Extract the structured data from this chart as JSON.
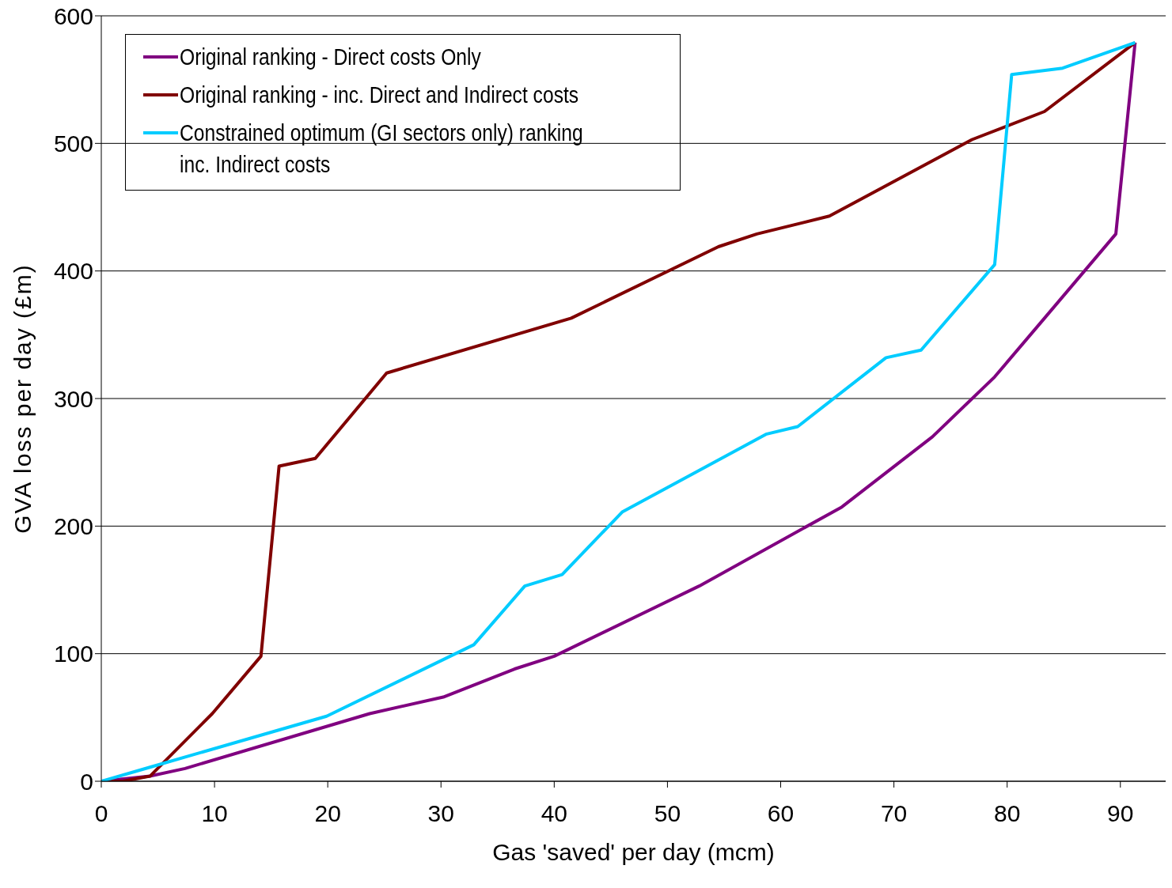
{
  "chart_data": {
    "type": "line",
    "xlabel": "Gas 'saved' per day (mcm)",
    "ylabel": "GVA loss per day (£m)",
    "xlim": [
      0,
      94
    ],
    "xticks": [
      0,
      10,
      20,
      30,
      40,
      50,
      60,
      70,
      80,
      90
    ],
    "ylim": [
      0,
      600
    ],
    "yticks": [
      0,
      100,
      200,
      300,
      400,
      500,
      600
    ],
    "grid": "y",
    "legend": "top left",
    "marker": "none",
    "line_style": "solid",
    "series": [
      {
        "name": "Original ranking - Direct costs Only",
        "color": "#800080",
        "x": [
          0,
          4.3,
          7.4,
          23.7,
          30.2,
          36.5,
          40,
          52.8,
          65.4,
          73.4,
          78.9,
          83.3,
          89.6,
          91.3
        ],
        "values": [
          0,
          4,
          10,
          53,
          66,
          88,
          98,
          153,
          215,
          270,
          317,
          363,
          429,
          579
        ]
      },
      {
        "name": "Original ranking - inc. Direct and Indirect costs",
        "color": "#800000",
        "x": [
          0,
          1.9,
          4.3,
          9.8,
          14.1,
          15.7,
          18.9,
          25.2,
          41.5,
          54.5,
          57.9,
          64.3,
          76.9,
          83.3,
          91.3
        ],
        "values": [
          0,
          0,
          4,
          53,
          98,
          247,
          253,
          320,
          363,
          419,
          429,
          443,
          503,
          525,
          579
        ]
      },
      {
        "name": "Constrained optimum (GI sectors only) ranking inc. Indirect costs",
        "color": "#00ccff",
        "x": [
          0,
          4.3,
          19.9,
          32.9,
          37.4,
          40.7,
          46,
          58.7,
          61.5,
          69.3,
          72.4,
          78.9,
          80.4,
          84.9,
          91.3
        ],
        "values": [
          0,
          11,
          51,
          107,
          153,
          162,
          211,
          272,
          278,
          332,
          338,
          405,
          554,
          559,
          579
        ]
      }
    ]
  }
}
